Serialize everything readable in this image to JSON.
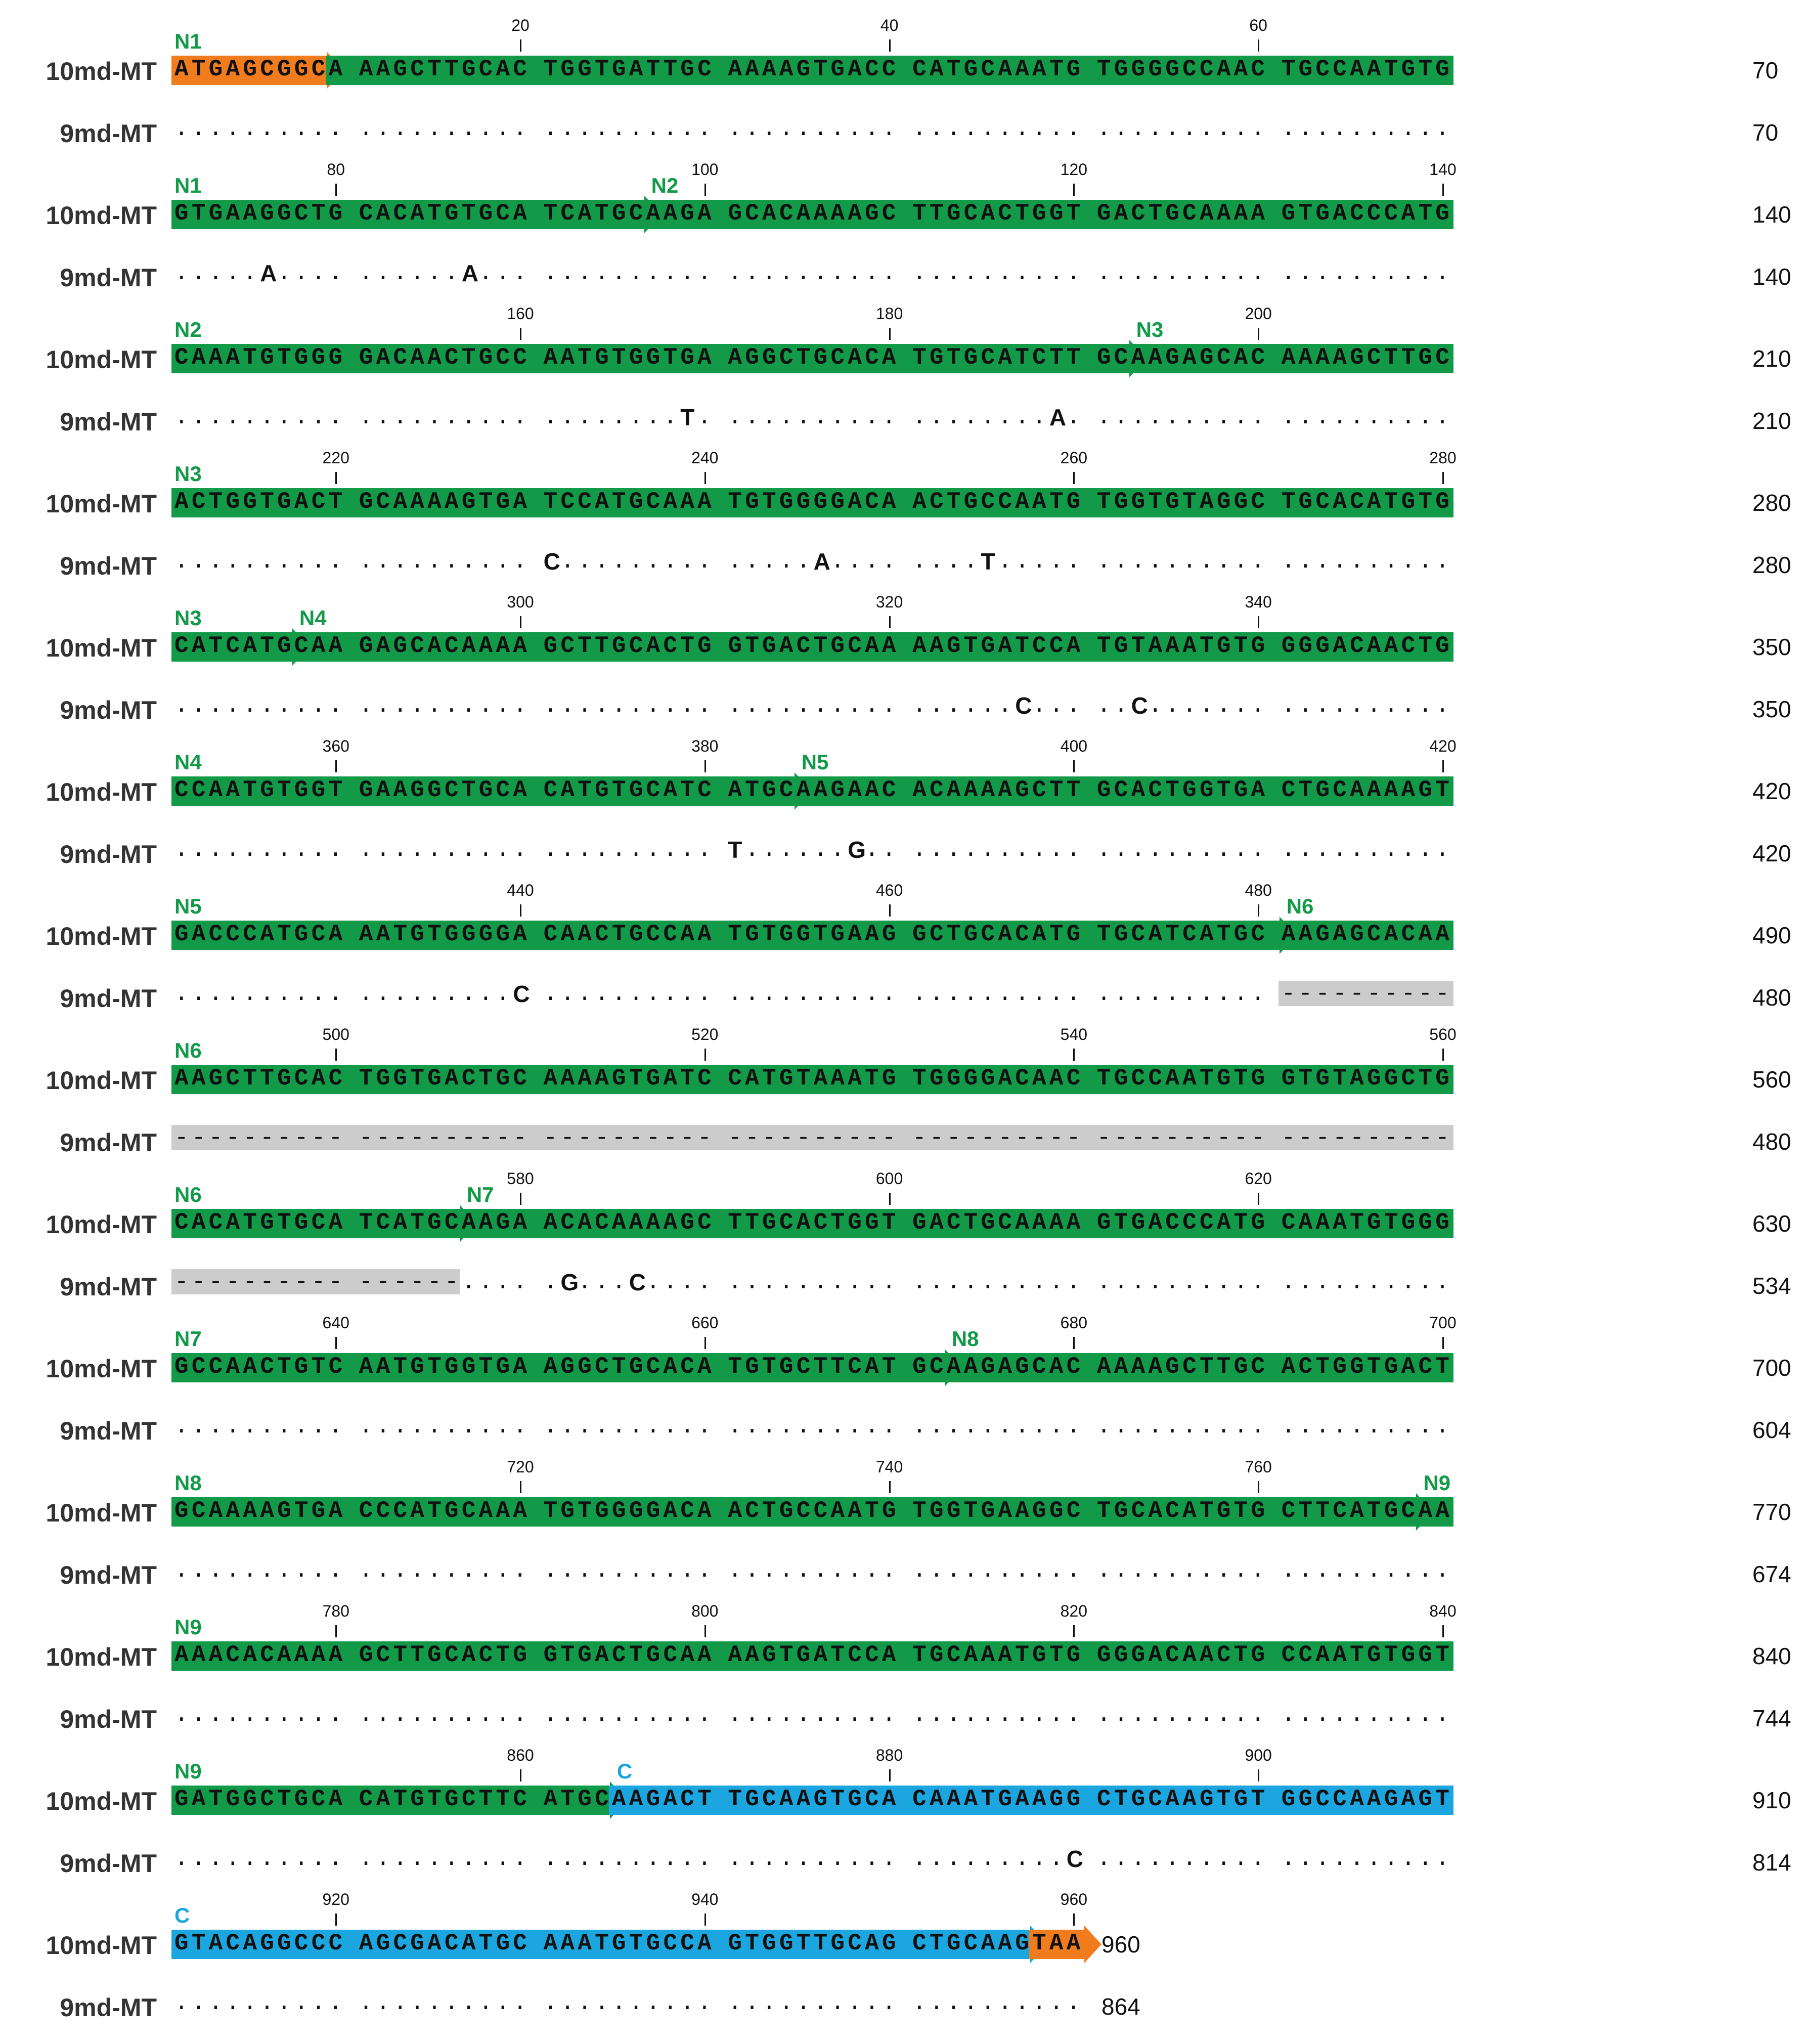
{
  "colors": {
    "orange": "#f07c1e",
    "green": "#129a48",
    "blue": "#1ca6e0",
    "gap": "#cccccc",
    "green_label": "#129a48",
    "blue_label": "#1ca6e0"
  },
  "seq_names": {
    "top": "10md-MT",
    "bottom": "9md-MT"
  },
  "blocks": [
    {
      "top_seq": "ATGAGCGGCA AAGCTTGCAC TGGTGATTGC AAAAGTGACC CATGCAAATG TGGGGCCAAC TGCCAATGTG",
      "top_end": "70",
      "bottom_end": "70",
      "ruler": [
        "20",
        "40",
        "60"
      ],
      "tags": [
        {
          "text": "N1",
          "color": "green"
        }
      ],
      "bars": [
        {
          "from": 0,
          "to": 9,
          "color": "orange",
          "arrow": true
        },
        {
          "from": 9,
          "to": 70,
          "color": "green",
          "arrow": false
        }
      ],
      "subs": [],
      "gap": null
    },
    {
      "top_seq": "GTGAAGGCTG CACATGTGCA TCATGCAAGA GCACAAAAGC TTGCACTGGT GACTGCAAAA GTGACCCATG",
      "top_end": "140",
      "bottom_end": "140",
      "ruler": [
        "80",
        "100",
        "120",
        "140"
      ],
      "tags": [
        {
          "text": "N1",
          "color": "green"
        },
        {
          "text": "N2",
          "color": "green"
        }
      ],
      "bars": [
        {
          "from": 0,
          "to": 26,
          "color": "green",
          "arrow": true
        },
        {
          "from": 26,
          "to": 70,
          "color": "green",
          "arrow": false
        }
      ],
      "subs": [
        {
          "pos": 5,
          "base": "A"
        },
        {
          "pos": 16,
          "base": "A"
        }
      ],
      "gap": null
    },
    {
      "top_seq": "CAAATGTGGG GACAACTGCC AATGTGGTGA AGGCTGCACA TGTGCATCTT GCAAGAGCAC AAAAGCTTGC",
      "top_end": "210",
      "bottom_end": "210",
      "ruler": [
        "160",
        "180",
        "200"
      ],
      "tags": [
        {
          "text": "N2",
          "color": "green"
        },
        {
          "text": "N3",
          "color": "green"
        }
      ],
      "bars": [
        {
          "from": 0,
          "to": 52,
          "color": "green",
          "arrow": true
        },
        {
          "from": 52,
          "to": 70,
          "color": "green",
          "arrow": false
        }
      ],
      "subs": [
        {
          "pos": 28,
          "base": "T"
        },
        {
          "pos": 48,
          "base": "A"
        }
      ],
      "gap": null
    },
    {
      "top_seq": "ACTGGTGACT GCAAAAGTGA TCCATGCAAA TGTGGGGACA ACTGCCAATG TGGTGTAGGC TGCACATGTG",
      "top_end": "280",
      "bottom_end": "280",
      "ruler": [
        "220",
        "240",
        "260",
        "280"
      ],
      "tags": [
        {
          "text": "N3",
          "color": "green"
        }
      ],
      "bars": [
        {
          "from": 0,
          "to": 70,
          "color": "green",
          "arrow": false
        }
      ],
      "subs": [
        {
          "pos": 20,
          "base": "C"
        },
        {
          "pos": 35,
          "base": "A"
        },
        {
          "pos": 44,
          "base": "T"
        }
      ],
      "gap": null
    },
    {
      "top_seq": "CATCATGCAA GAGCACAAAA GCTTGCACTG GTGACTGCAA AAGTGATCCA TGTAAATGTG GGGACAACTG",
      "top_end": "350",
      "bottom_end": "350",
      "ruler": [
        "300",
        "320",
        "340"
      ],
      "tags": [
        {
          "text": "N3",
          "color": "green"
        },
        {
          "text": "N4",
          "color": "green"
        }
      ],
      "bars": [
        {
          "from": 0,
          "to": 7,
          "color": "green",
          "arrow": true
        },
        {
          "from": 7,
          "to": 70,
          "color": "green",
          "arrow": false
        }
      ],
      "subs": [
        {
          "pos": 46,
          "base": "C"
        },
        {
          "pos": 52,
          "base": "C"
        }
      ],
      "gap": null
    },
    {
      "top_seq": "CCAATGTGGT GAAGGCTGCA CATGTGCATC ATGCAAGAAC ACAAAAGCTT GCACTGGTGA CTGCAAAAGT",
      "top_end": "420",
      "bottom_end": "420",
      "ruler": [
        "360",
        "380",
        "400",
        "420"
      ],
      "tags": [
        {
          "text": "N4",
          "color": "green"
        },
        {
          "text": "N5",
          "color": "green"
        }
      ],
      "bars": [
        {
          "from": 0,
          "to": 34,
          "color": "green",
          "arrow": true
        },
        {
          "from": 34,
          "to": 70,
          "color": "green",
          "arrow": false
        }
      ],
      "subs": [
        {
          "pos": 30,
          "base": "T"
        },
        {
          "pos": 37,
          "base": "G"
        }
      ],
      "gap": null
    },
    {
      "top_seq": "GACCCATGCA AATGTGGGGA CAACTGCCAA TGTGGTGAAG GCTGCACATG TGCATCATGC AAGAGCACAA",
      "top_end": "490",
      "bottom_end": "480",
      "ruler": [
        "440",
        "460",
        "480"
      ],
      "tags": [
        {
          "text": "N5",
          "color": "green"
        },
        {
          "text": "N6",
          "color": "green"
        }
      ],
      "bars": [
        {
          "from": 0,
          "to": 60,
          "color": "green",
          "arrow": true
        },
        {
          "from": 60,
          "to": 70,
          "color": "green",
          "arrow": false
        }
      ],
      "subs": [
        {
          "pos": 19,
          "base": "C"
        }
      ],
      "gap": {
        "from": 60,
        "to": 70
      }
    },
    {
      "top_seq": "AAGCTTGCAC TGGTGACTGC AAAAGTGATC CATGTAAATG TGGGGACAAC TGCCAATGTG GTGTAGGCTG",
      "top_end": "560",
      "bottom_end": "480",
      "ruler": [
        "500",
        "520",
        "540",
        "560"
      ],
      "tags": [
        {
          "text": "N6",
          "color": "green"
        }
      ],
      "bars": [
        {
          "from": 0,
          "to": 70,
          "color": "green",
          "arrow": false
        }
      ],
      "subs": [],
      "gap": {
        "from": 0,
        "to": 70
      }
    },
    {
      "top_seq": "CACATGTGCA TCATGCAAGA ACACAAAAGC TTGCACTGGT GACTGCAAAA GTGACCCATG CAAATGTGGG",
      "top_end": "630",
      "bottom_end": "534",
      "ruler": [
        "580",
        "600",
        "620"
      ],
      "tags": [
        {
          "text": "N6",
          "color": "green"
        },
        {
          "text": "N7",
          "color": "green"
        }
      ],
      "bars": [
        {
          "from": 0,
          "to": 16,
          "color": "green",
          "arrow": true
        },
        {
          "from": 16,
          "to": 70,
          "color": "green",
          "arrow": false
        }
      ],
      "subs": [
        {
          "pos": 21,
          "base": "G"
        },
        {
          "pos": 25,
          "base": "C"
        }
      ],
      "gap": {
        "from": 0,
        "to": 16
      }
    },
    {
      "top_seq": "GCCAACTGTC AATGTGGTGA AGGCTGCACA TGTGCTTCAT GCAAGAGCAC AAAAGCTTGC ACTGGTGACT",
      "top_end": "700",
      "bottom_end": "604",
      "ruler": [
        "640",
        "660",
        "680",
        "700"
      ],
      "tags": [
        {
          "text": "N7",
          "color": "green"
        },
        {
          "text": "N8",
          "color": "green"
        }
      ],
      "bars": [
        {
          "from": 0,
          "to": 42,
          "color": "green",
          "arrow": true
        },
        {
          "from": 42,
          "to": 70,
          "color": "green",
          "arrow": false
        }
      ],
      "subs": [],
      "gap": null
    },
    {
      "top_seq": "GCAAAAGTGA CCCATGCAAA TGTGGGGACA ACTGCCAATG TGGTGAAGGC TGCACATGTG CTTCATGCAA",
      "top_end": "770",
      "bottom_end": "674",
      "ruler": [
        "720",
        "740",
        "760"
      ],
      "tags": [
        {
          "text": "N8",
          "color": "green"
        },
        {
          "text": "N9",
          "color": "green"
        }
      ],
      "bars": [
        {
          "from": 0,
          "to": 68,
          "color": "green",
          "arrow": true
        },
        {
          "from": 68,
          "to": 70,
          "color": "green",
          "arrow": false
        }
      ],
      "subs": [],
      "gap": null
    },
    {
      "top_seq": "AAACACAAAA GCTTGCACTG GTGACTGCAA AAGTGATCCA TGCAAATGTG GGGACAACTG CCAATGTGGT",
      "top_end": "840",
      "bottom_end": "744",
      "ruler": [
        "780",
        "800",
        "820",
        "840"
      ],
      "tags": [
        {
          "text": "N9",
          "color": "green"
        }
      ],
      "bars": [
        {
          "from": 0,
          "to": 70,
          "color": "green",
          "arrow": false
        }
      ],
      "subs": [],
      "gap": null
    },
    {
      "top_seq": "GATGGCTGCA CATGTGCTTC ATGCAAGACT TGCAAGTGCA CAAATGAAGG CTGCAAGTGT GGCCAAGAGT",
      "top_end": "910",
      "bottom_end": "814",
      "ruler": [
        "860",
        "880",
        "900"
      ],
      "tags": [
        {
          "text": "N9",
          "color": "green"
        },
        {
          "text": "C",
          "color": "blue"
        }
      ],
      "bars": [
        {
          "from": 0,
          "to": 24,
          "color": "green",
          "arrow": true
        },
        {
          "from": 24,
          "to": 70,
          "color": "blue",
          "arrow": false
        }
      ],
      "subs": [
        {
          "pos": 49,
          "base": "C"
        }
      ],
      "gap": null
    },
    {
      "top_seq": "GTACAGGCCC AGCGACATGC AAATGTGCCA GTGGTTGCAG CTGCAAGTAA",
      "top_end": "960",
      "bottom_end": "864",
      "ruler": [
        "920",
        "940",
        "960"
      ],
      "tags": [
        {
          "text": "C",
          "color": "blue"
        }
      ],
      "bars": [
        {
          "from": 0,
          "to": 47,
          "color": "blue",
          "arrow": true
        },
        {
          "from": 47,
          "to": 50,
          "color": "orange",
          "arrow": true
        }
      ],
      "subs": [],
      "gap": null
    }
  ]
}
